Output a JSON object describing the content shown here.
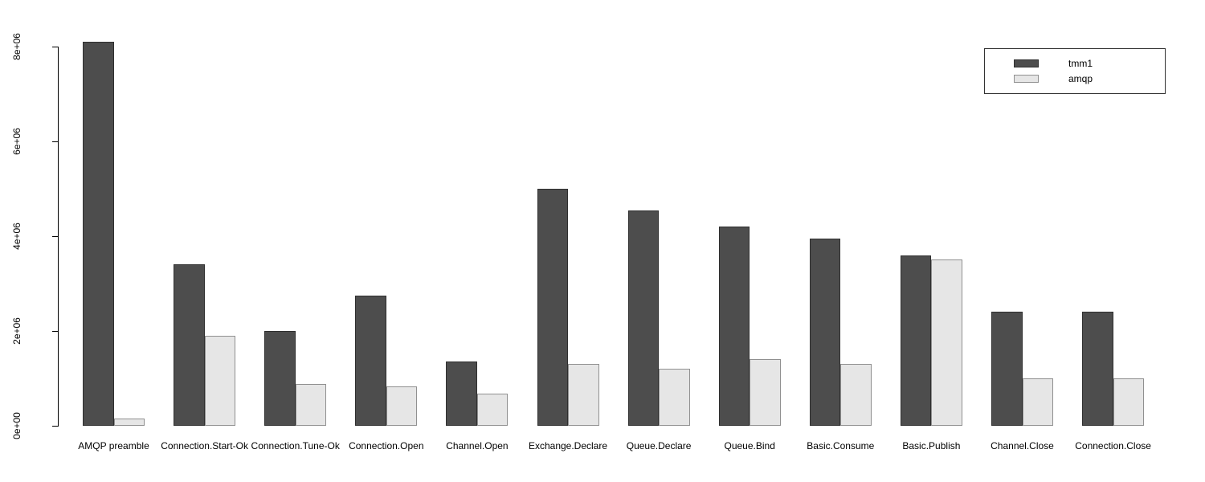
{
  "chart_data": {
    "type": "bar",
    "title": "",
    "xlabel": "",
    "ylabel": "",
    "categories": [
      "AMQP preamble",
      "Connection.Start-Ok",
      "Connection.Tune-Ok",
      "Connection.Open",
      "Channel.Open",
      "Exchange.Declare",
      "Queue.Declare",
      "Queue.Bind",
      "Basic.Consume",
      "Basic.Publish",
      "Channel.Close",
      "Connection.Close"
    ],
    "series": [
      {
        "name": "tmm1",
        "color": "#4d4d4d",
        "border_color": "#2f2f2f",
        "values": [
          8100000,
          3400000,
          2000000,
          2750000,
          1350000,
          5000000,
          4550000,
          4200000,
          3950000,
          3600000,
          2400000,
          2400000
        ]
      },
      {
        "name": "amqp",
        "color": "#e6e6e6",
        "border_color": "#909090",
        "values": [
          150000,
          1900000,
          880000,
          830000,
          680000,
          1300000,
          1200000,
          1400000,
          1300000,
          3500000,
          1000000,
          1000000
        ]
      }
    ],
    "ylim": [
      0,
      8000000
    ],
    "ytick_labels": [
      "0e+00",
      "2e+06",
      "4e+06",
      "6e+06",
      "8e+06"
    ],
    "ytick_values": [
      0,
      2000000,
      4000000,
      6000000,
      8000000
    ],
    "grid": false,
    "legend_position": "top-right"
  }
}
